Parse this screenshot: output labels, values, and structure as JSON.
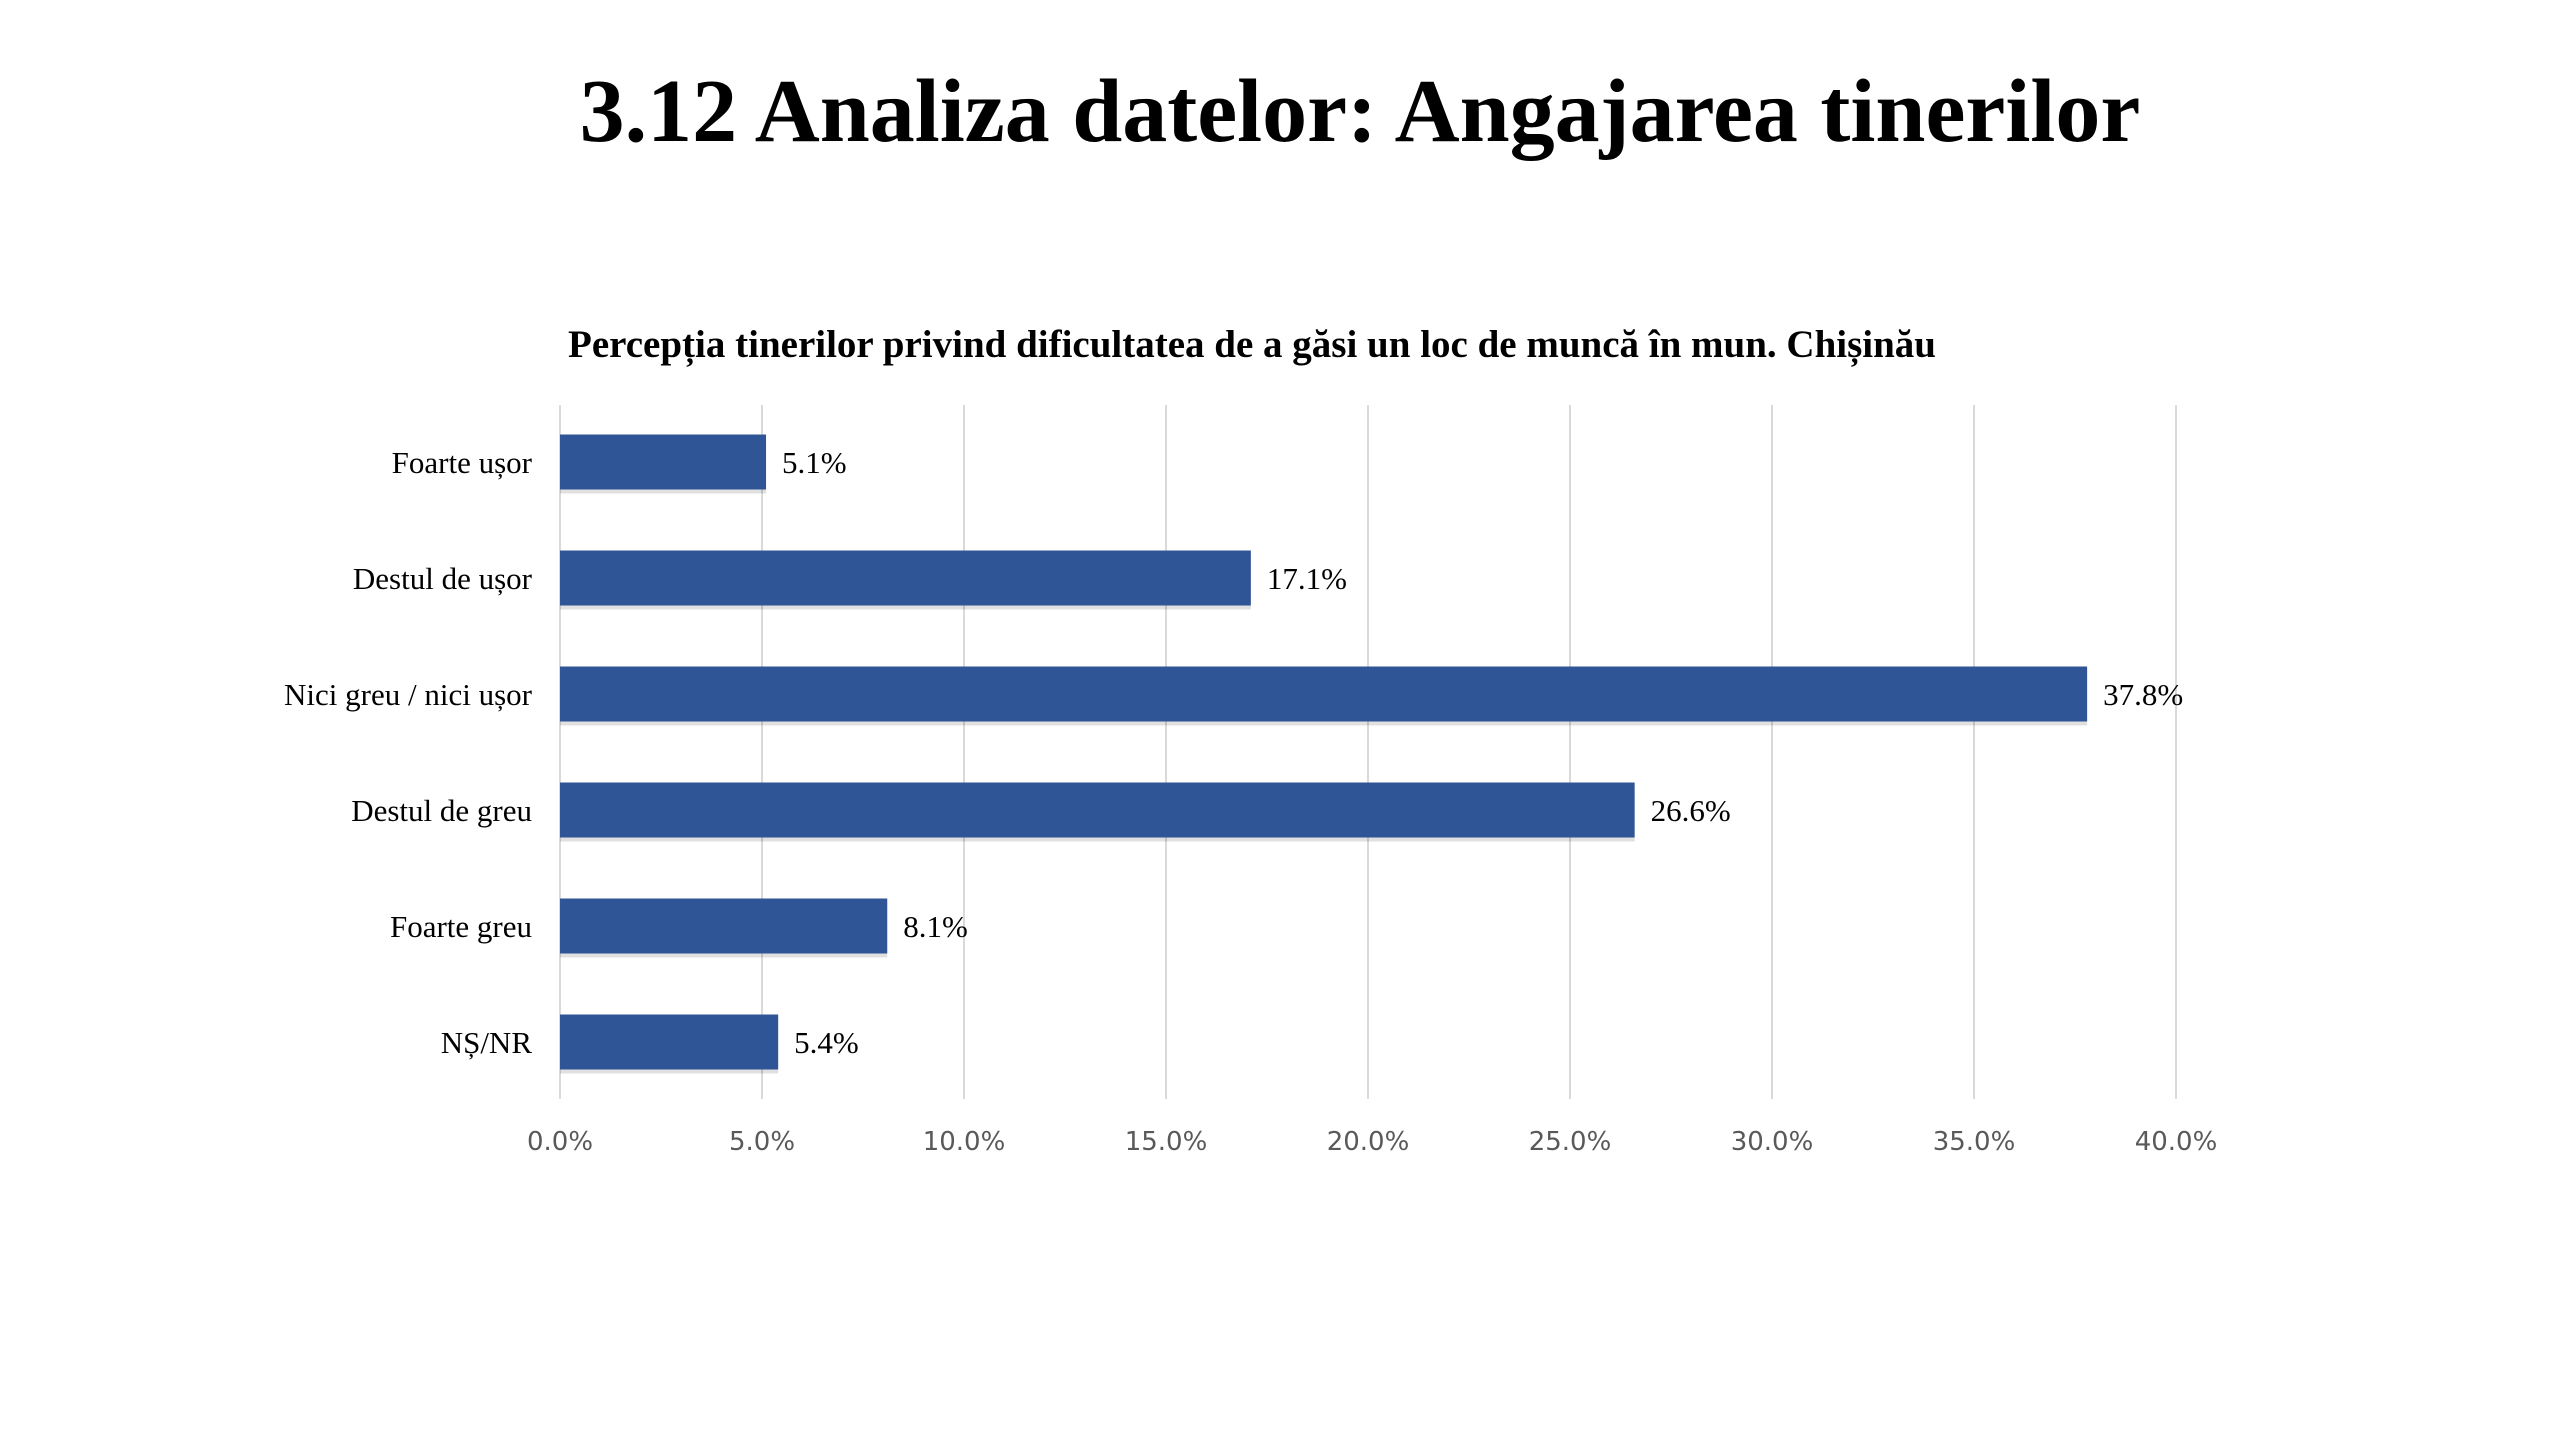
{
  "slide": {
    "title": "3.12 Analiza datelor: Angajarea tinerilor"
  },
  "chart_data": {
    "type": "bar",
    "orientation": "horizontal",
    "title": "Percepția tinerilor privind dificultatea de a găsi un loc de muncă în mun. Chișinău",
    "categories": [
      "Foarte ușor",
      "Destul de ușor",
      "Nici greu / nici ușor",
      "Destul de greu",
      "Foarte greu",
      "NȘ/NR"
    ],
    "values": [
      5.1,
      17.1,
      37.8,
      26.6,
      8.1,
      5.4
    ],
    "data_labels": [
      "5.1%",
      "17.1%",
      "37.8%",
      "26.6%",
      "8.1%",
      "5.4%"
    ],
    "xlim": [
      0,
      40
    ],
    "x_ticks": [
      0,
      5,
      10,
      15,
      20,
      25,
      30,
      35,
      40
    ],
    "x_tick_labels": [
      "0.0%",
      "5.0%",
      "10.0%",
      "15.0%",
      "20.0%",
      "25.0%",
      "30.0%",
      "35.0%",
      "40.0%"
    ],
    "xlabel": "",
    "ylabel": "",
    "grid": "vertical",
    "legend": "none",
    "colors": {
      "bar": "#2F5597",
      "grid": "#D9D9D9",
      "tick_text": "#595959"
    }
  }
}
